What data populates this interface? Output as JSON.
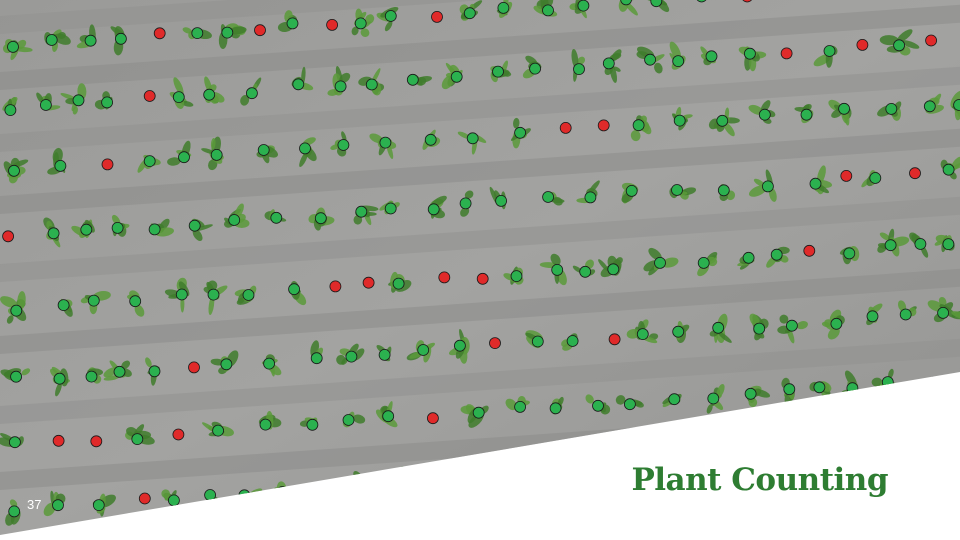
{
  "slide": {
    "title": "Plant Counting",
    "page_number": "37",
    "accent_color": "#2e7d32"
  },
  "legend_colors": {
    "plant_detected": "#2bb14f",
    "missing_plant": "#e02a2a"
  },
  "image": {
    "subject": "aerial-field-rows-with-plant-markers"
  }
}
